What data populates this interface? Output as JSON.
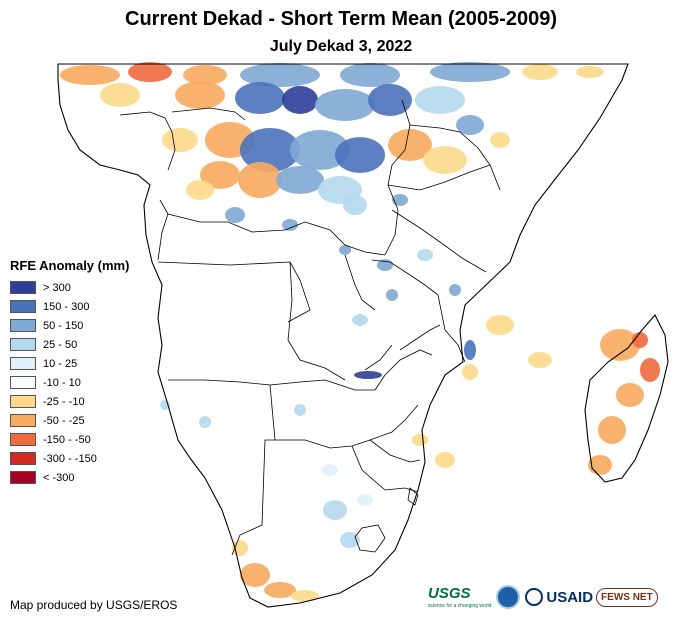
{
  "title": "Current Dekad - Short Term Mean (2005-2009)",
  "subtitle": "July Dekad 3, 2022",
  "legend": {
    "title": "RFE Anomaly (mm)",
    "items": [
      {
        "label": "> 300",
        "color": "#2e3e9a"
      },
      {
        "label": "150 - 300",
        "color": "#4a72ba"
      },
      {
        "label": "50 - 150",
        "color": "#7fa9d5"
      },
      {
        "label": "25 - 50",
        "color": "#b5d9ee"
      },
      {
        "label": "10 - 25",
        "color": "#e0f1f9"
      },
      {
        "label": "-10 - 10",
        "color": "#ffffff"
      },
      {
        "label": "-25 - -10",
        "color": "#fcd98b"
      },
      {
        "label": "-50 - -25",
        "color": "#f8aa5e"
      },
      {
        "label": "-150 - -50",
        "color": "#ef6a3e"
      },
      {
        "label": "-300 - -150",
        "color": "#d02b23"
      },
      {
        "label": "< -300",
        "color": "#a50026"
      }
    ]
  },
  "credit": "Map produced by USGS/EROS",
  "logos": {
    "usgs": "USGS",
    "usgs_tagline": "science for a changing world",
    "usaid": "USAID",
    "fews": "FEWS NET"
  }
}
